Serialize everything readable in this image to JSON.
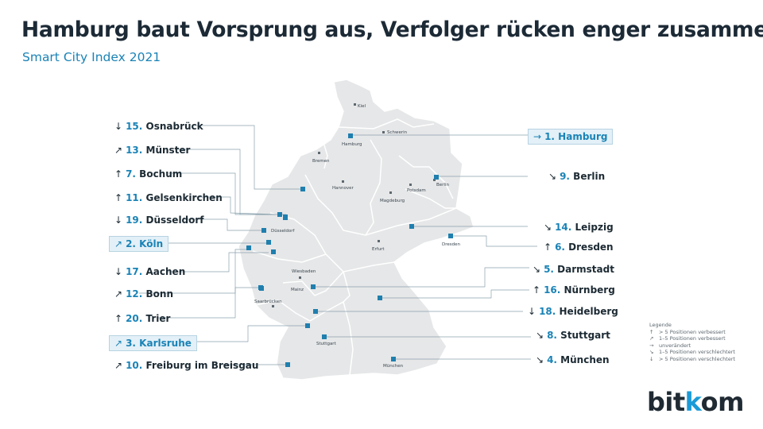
{
  "title": "Hamburg baut Vorsprung aus, Verfolger rücken enger zusammen",
  "subtitle": "Smart City Index 2021",
  "colors": {
    "accent": "#1a83b6",
    "map_fill": "#e6e7e8",
    "marker": "#1f7fae"
  },
  "ranking_labels": [
    {
      "arrow": "↓",
      "rank": "15.",
      "name": "Osnabrück"
    },
    {
      "arrow": "↗",
      "rank": "13.",
      "name": "Münster"
    },
    {
      "arrow": "↑",
      "rank": "7.",
      "name": "Bochum"
    },
    {
      "arrow": "↑",
      "rank": "11.",
      "name": "Gelsenkirchen"
    },
    {
      "arrow": "↓",
      "rank": "19.",
      "name": "Düsseldorf"
    },
    {
      "arrow": "↗",
      "rank": "2.",
      "name": "Köln"
    },
    {
      "arrow": "↓",
      "rank": "17.",
      "name": "Aachen"
    },
    {
      "arrow": "↗",
      "rank": "12.",
      "name": "Bonn"
    },
    {
      "arrow": "↑",
      "rank": "20.",
      "name": "Trier"
    },
    {
      "arrow": "↗",
      "rank": "3.",
      "name": "Karlsruhe"
    },
    {
      "arrow": "↗",
      "rank": "10.",
      "name": "Freiburg im Breisgau"
    },
    {
      "arrow": "→",
      "rank": "1.",
      "name": "Hamburg"
    },
    {
      "arrow": "↘",
      "rank": "9.",
      "name": "Berlin"
    },
    {
      "arrow": "↘",
      "rank": "14.",
      "name": "Leipzig"
    },
    {
      "arrow": "↑",
      "rank": "6.",
      "name": "Dresden"
    },
    {
      "arrow": "↘",
      "rank": "5.",
      "name": "Darmstadt"
    },
    {
      "arrow": "↑",
      "rank": "16.",
      "name": "Nürnberg"
    },
    {
      "arrow": "↓",
      "rank": "18.",
      "name": "Heidelberg"
    },
    {
      "arrow": "↘",
      "rank": "8.",
      "name": "Stuttgart"
    },
    {
      "arrow": "↘",
      "rank": "4.",
      "name": "München"
    }
  ],
  "map_cities": [
    "Kiel",
    "Schwerin",
    "Hamburg",
    "Bremen",
    "Berlin",
    "Potsdam",
    "Hannover",
    "Magdeburg",
    "Düsseldorf",
    "Dresden",
    "Erfurt",
    "Wiesbaden",
    "Mainz",
    "Saarbrücken",
    "Stuttgart",
    "München"
  ],
  "legend": {
    "title": "Legende",
    "items": [
      {
        "arrow": "↑",
        "text": "> 5 Positionen verbessert"
      },
      {
        "arrow": "↗",
        "text": "1–5 Positionen verbessert"
      },
      {
        "arrow": "→",
        "text": "unverändert"
      },
      {
        "arrow": "↘",
        "text": "1–5 Positionen verschlechtert"
      },
      {
        "arrow": "↓",
        "text": "> 5 Positionen verschlechtert"
      }
    ]
  },
  "logo": {
    "part1": "bit",
    "part2": "k",
    "part3": "o",
    "part4": "m"
  }
}
